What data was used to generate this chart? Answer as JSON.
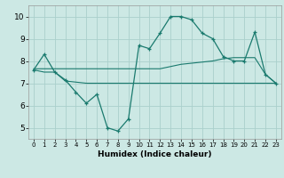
{
  "xlabel": "Humidex (Indice chaleur)",
  "ylabel": "",
  "bg_color": "#cce8e4",
  "line_color": "#1a7a6e",
  "grid_color": "#aad0cc",
  "xlim": [
    -0.5,
    23.5
  ],
  "ylim": [
    4.5,
    10.5
  ],
  "xticks": [
    0,
    1,
    2,
    3,
    4,
    5,
    6,
    7,
    8,
    9,
    10,
    11,
    12,
    13,
    14,
    15,
    16,
    17,
    18,
    19,
    20,
    21,
    22,
    23
  ],
  "yticks": [
    5,
    6,
    7,
    8,
    9,
    10
  ],
  "line1_x": [
    0,
    1,
    2,
    3,
    4,
    5,
    6,
    7,
    8,
    9,
    10,
    11,
    12,
    13,
    14,
    15,
    16,
    17,
    18,
    19,
    20,
    21,
    22,
    23
  ],
  "line1_y": [
    7.6,
    8.3,
    7.5,
    7.15,
    6.6,
    6.1,
    6.5,
    5.0,
    4.85,
    5.4,
    8.7,
    8.55,
    9.25,
    10.0,
    10.0,
    9.85,
    9.25,
    9.0,
    8.2,
    8.0,
    8.0,
    9.3,
    7.4,
    7.0
  ],
  "line2_x": [
    0,
    1,
    2,
    3,
    4,
    5,
    6,
    7,
    8,
    9,
    10,
    11,
    12,
    13,
    14,
    15,
    16,
    17,
    18,
    19,
    20,
    21,
    22,
    23
  ],
  "line2_y": [
    7.65,
    7.65,
    7.65,
    7.65,
    7.65,
    7.65,
    7.65,
    7.65,
    7.65,
    7.65,
    7.65,
    7.65,
    7.65,
    7.75,
    7.85,
    7.9,
    7.95,
    8.0,
    8.1,
    8.15,
    8.15,
    8.15,
    7.4,
    7.0
  ],
  "line3_x": [
    0,
    1,
    2,
    3,
    4,
    5,
    6,
    7,
    8,
    9,
    10,
    11,
    12,
    13,
    14,
    15,
    16,
    17,
    18,
    19,
    20,
    21,
    22,
    23
  ],
  "line3_y": [
    7.6,
    7.5,
    7.5,
    7.1,
    7.05,
    7.0,
    7.0,
    7.0,
    7.0,
    7.0,
    7.0,
    7.0,
    7.0,
    7.0,
    7.0,
    7.0,
    7.0,
    7.0,
    7.0,
    7.0,
    7.0,
    7.0,
    7.0,
    7.0
  ]
}
